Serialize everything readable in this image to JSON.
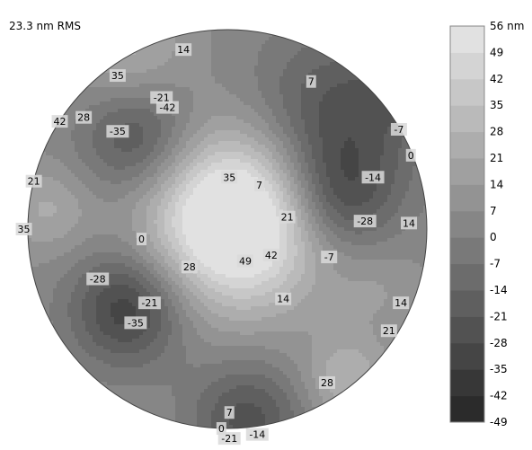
{
  "chart_data": {
    "type": "contour",
    "title": "23.3 nm RMS",
    "unit": "nm",
    "zlim": [
      -49,
      56
    ],
    "level_step": 7,
    "colorbar_ticks": [
      "56 nm",
      "49",
      "42",
      "35",
      "28",
      "21",
      "14",
      "7",
      "0",
      "-7",
      "-14",
      "-21",
      "-28",
      "-35",
      "-42",
      "-49"
    ],
    "band_colors": [
      "#2b2b2b",
      "#373737",
      "#454545",
      "#525252",
      "#5f5f5f",
      "#6c6c6c",
      "#797979",
      "#868686",
      "#939393",
      "#a0a0a0",
      "#adadad",
      "#bababa",
      "#c7c7c7",
      "#d4d4d4",
      "#e1e1e1"
    ],
    "contour_labels": [
      {
        "text": "14",
        "x": -0.22,
        "y": 0.9
      },
      {
        "text": "35",
        "x": -0.55,
        "y": 0.77
      },
      {
        "text": "7",
        "x": 0.42,
        "y": 0.74
      },
      {
        "text": "-21",
        "x": -0.33,
        "y": 0.66
      },
      {
        "text": "-42",
        "x": -0.3,
        "y": 0.61
      },
      {
        "text": "42",
        "x": -0.84,
        "y": 0.54
      },
      {
        "text": "28",
        "x": -0.72,
        "y": 0.56
      },
      {
        "text": "-35",
        "x": -0.55,
        "y": 0.49
      },
      {
        "text": "-7",
        "x": 0.86,
        "y": 0.5
      },
      {
        "text": "0",
        "x": 0.92,
        "y": 0.37
      },
      {
        "text": "21",
        "x": -0.97,
        "y": 0.24
      },
      {
        "text": "35",
        "x": 0.01,
        "y": 0.26
      },
      {
        "text": "7",
        "x": 0.16,
        "y": 0.22
      },
      {
        "text": "-14",
        "x": 0.73,
        "y": 0.26
      },
      {
        "text": "21",
        "x": 0.3,
        "y": 0.06
      },
      {
        "text": "-28",
        "x": 0.69,
        "y": 0.04
      },
      {
        "text": "14",
        "x": 0.91,
        "y": 0.03
      },
      {
        "text": "35",
        "x": -1.02,
        "y": 0.0
      },
      {
        "text": "0",
        "x": -0.43,
        "y": -0.05
      },
      {
        "text": "49",
        "x": 0.09,
        "y": -0.16
      },
      {
        "text": "42",
        "x": 0.22,
        "y": -0.13
      },
      {
        "text": "28",
        "x": -0.19,
        "y": -0.19
      },
      {
        "text": "-7",
        "x": 0.51,
        "y": -0.14
      },
      {
        "text": "-28",
        "x": -0.65,
        "y": -0.25
      },
      {
        "text": "14",
        "x": 0.28,
        "y": -0.35
      },
      {
        "text": "-21",
        "x": -0.39,
        "y": -0.37
      },
      {
        "text": "14",
        "x": 0.87,
        "y": -0.37
      },
      {
        "text": "-35",
        "x": -0.46,
        "y": -0.47
      },
      {
        "text": "21",
        "x": 0.81,
        "y": -0.51
      },
      {
        "text": "28",
        "x": 0.5,
        "y": -0.77
      },
      {
        "text": "7",
        "x": 0.01,
        "y": -0.92
      },
      {
        "text": "0",
        "x": -0.03,
        "y": -1.0
      },
      {
        "text": "-21",
        "x": 0.01,
        "y": -1.05
      },
      {
        "text": "-14",
        "x": 0.15,
        "y": -1.03
      }
    ]
  }
}
